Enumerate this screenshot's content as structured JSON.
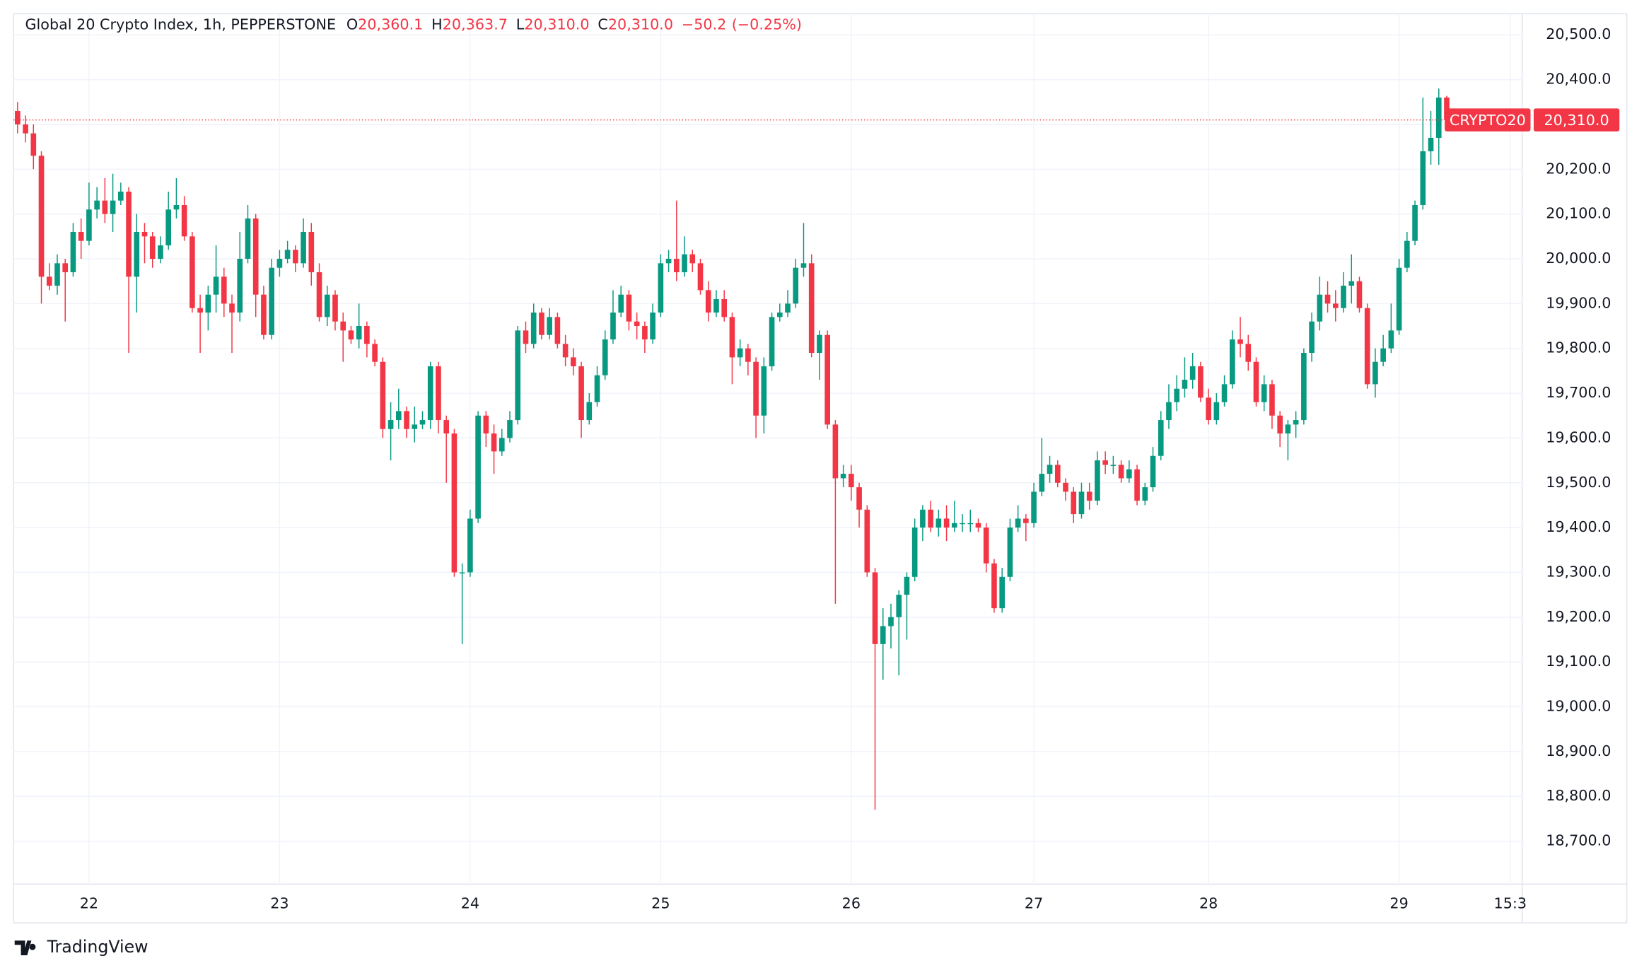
{
  "chart_data": {
    "type": "candlestick",
    "title": "Global 20 Crypto Index, 1h, PEPPERSTONE",
    "legend_values": [
      {
        "prefix": "O",
        "value": 20360.1,
        "label": "20,360.1"
      },
      {
        "prefix": "H",
        "value": 20363.7,
        "label": "20,363.7"
      },
      {
        "prefix": "L",
        "value": 20310.0,
        "label": "20,310.0"
      },
      {
        "prefix": "C",
        "value": 20310.0,
        "label": "20,310.0"
      }
    ],
    "change": {
      "value": -50.2,
      "label": "−50.2"
    },
    "change_percent": {
      "value": -0.25,
      "label": "(−0.25%)"
    },
    "price_tag": {
      "symbol": "CRYPTO20",
      "value": 20310.0,
      "label": "20,310.0"
    },
    "brand": "TradingView",
    "up_color": "#089981",
    "down_color": "#f23645",
    "grid": true,
    "ylim": [
      18604,
      20547
    ],
    "yticks": [
      {
        "value": 18700,
        "label": "18,700.0"
      },
      {
        "value": 18800,
        "label": "18,800.0"
      },
      {
        "value": 18900,
        "label": "18,900.0"
      },
      {
        "value": 19000,
        "label": "19,000.0"
      },
      {
        "value": 19100,
        "label": "19,100.0"
      },
      {
        "value": 19200,
        "label": "19,200.0"
      },
      {
        "value": 19300,
        "label": "19,300.0"
      },
      {
        "value": 19400,
        "label": "19,400.0"
      },
      {
        "value": 19500,
        "label": "19,500.0"
      },
      {
        "value": 19600,
        "label": "19,600.0"
      },
      {
        "value": 19700,
        "label": "19,700.0"
      },
      {
        "value": 19800,
        "label": "19,800.0"
      },
      {
        "value": 19900,
        "label": "19,900.0"
      },
      {
        "value": 20000,
        "label": "20,000.0"
      },
      {
        "value": 20100,
        "label": "20,100.0"
      },
      {
        "value": 20200,
        "label": "20,200.0"
      },
      {
        "value": 20300,
        "label": "20,300.0"
      },
      {
        "value": 20400,
        "label": "20,400.0"
      },
      {
        "value": 20500,
        "label": "20,500.0"
      }
    ],
    "xlim": [
      -0.5,
      189.5
    ],
    "xticks": [
      {
        "value": 9,
        "label": "22"
      },
      {
        "value": 33,
        "label": "23"
      },
      {
        "value": 57,
        "label": "24"
      },
      {
        "value": 81,
        "label": "25"
      },
      {
        "value": 105,
        "label": "26"
      },
      {
        "value": 128,
        "label": "27"
      },
      {
        "value": 150,
        "label": "28"
      },
      {
        "value": 174,
        "label": "29"
      },
      {
        "value": 188,
        "label": "15:3"
      }
    ],
    "open": [
      20330,
      20300,
      20280,
      20230,
      19960,
      19940,
      19990,
      19970,
      20060,
      20040,
      20110,
      20130,
      20100,
      20130,
      20150,
      19960,
      20060,
      20050,
      20000,
      20030,
      20110,
      20120,
      20050,
      19890,
      19880,
      19920,
      19960,
      19900,
      19880,
      20000,
      20090,
      19920,
      19830,
      19980,
      20000,
      20020,
      19990,
      20060,
      19970,
      19870,
      19920,
      19860,
      19840,
      19820,
      19850,
      19810,
      19770,
      19620,
      19640,
      19660,
      19620,
      19630,
      19640,
      19760,
      19640,
      19610,
      19300,
      19300,
      19420,
      19650,
      19610,
      19570,
      19600,
      19640,
      19840,
      19810,
      19880,
      19830,
      19870,
      19810,
      19780,
      19760,
      19640,
      19680,
      19740,
      19820,
      19880,
      19920,
      19860,
      19850,
      19820,
      19880,
      19990,
      20000,
      19970,
      20010,
      19990,
      19930,
      19880,
      19910,
      19870,
      19780,
      19800,
      19770,
      19650,
      19760,
      19870,
      19880,
      19900,
      19980,
      19990,
      19790,
      19830,
      19630,
      19510,
      19520,
      19490,
      19440,
      19300,
      19140,
      19180,
      19200,
      19250,
      19290,
      19400,
      19440,
      19400,
      19420,
      19400,
      19410,
      19410,
      19410,
      19400,
      19320,
      19220,
      19290,
      19400,
      19420,
      19410,
      19480,
      19520,
      19540,
      19500,
      19480,
      19430,
      19480,
      19460,
      19550,
      19540,
      19540,
      19510,
      19530,
      19460,
      19490,
      19560,
      19640,
      19680,
      19710,
      19730,
      19760,
      19690,
      19640,
      19680,
      19720,
      19820,
      19810,
      19770,
      19680,
      19720,
      19650,
      19610,
      19630,
      19640,
      19790,
      19860,
      19920,
      19900,
      19890,
      19940,
      19950,
      19890,
      19720,
      19770,
      19800,
      19840,
      19980,
      20040,
      20120,
      20240,
      20270,
      20360.1
    ],
    "high": [
      20350,
      20320,
      20300,
      20240,
      19990,
      20010,
      20000,
      20080,
      20090,
      20170,
      20160,
      20180,
      20190,
      20170,
      20160,
      20100,
      20080,
      20060,
      20050,
      20150,
      20180,
      20140,
      20060,
      19920,
      19940,
      20030,
      19980,
      19920,
      20060,
      20120,
      20100,
      19940,
      20000,
      20020,
      20040,
      20030,
      20090,
      20080,
      19990,
      19940,
      19930,
      19880,
      19850,
      19900,
      19860,
      19820,
      19780,
      19680,
      19710,
      19670,
      19670,
      19660,
      19770,
      19770,
      19650,
      19620,
      19320,
      19440,
      19660,
      19660,
      19630,
      19620,
      19660,
      19850,
      19860,
      19900,
      19890,
      19890,
      19880,
      19830,
      19800,
      19770,
      19700,
      19760,
      19840,
      19930,
      19940,
      19930,
      19880,
      19860,
      19900,
      20010,
      20020,
      20130,
      20050,
      20020,
      20000,
      19950,
      19930,
      19930,
      19880,
      19820,
      19810,
      19780,
      19780,
      19880,
      19900,
      19930,
      20000,
      20080,
      20010,
      19840,
      19840,
      19640,
      19540,
      19540,
      19500,
      19450,
      19310,
      19220,
      19230,
      19260,
      19300,
      19420,
      19450,
      19460,
      19440,
      19450,
      19460,
      19430,
      19440,
      19420,
      19410,
      19330,
      19310,
      19420,
      19450,
      19430,
      19500,
      19600,
      19560,
      19550,
      19510,
      19490,
      19500,
      19500,
      19570,
      19570,
      19560,
      19550,
      19550,
      19540,
      19500,
      19580,
      19660,
      19720,
      19740,
      19780,
      19790,
      19770,
      19710,
      19700,
      19740,
      19840,
      19870,
      19830,
      19780,
      19740,
      19730,
      19660,
      19640,
      19660,
      19800,
      19880,
      19960,
      19950,
      19930,
      19970,
      20010,
      19960,
      19900,
      19800,
      19830,
      19900,
      20000,
      20060,
      20130,
      20360,
      20330,
      20380,
      20363.7
    ],
    "low": [
      20280,
      20260,
      20200,
      19900,
      19930,
      19920,
      19860,
      19960,
      20000,
      20030,
      20090,
      20080,
      20060,
      20120,
      19790,
      19880,
      19990,
      19980,
      19990,
      20020,
      20090,
      20040,
      19880,
      19790,
      19840,
      19880,
      19870,
      19790,
      19860,
      19990,
      19870,
      19820,
      19820,
      19960,
      19990,
      19970,
      19980,
      19940,
      19860,
      19850,
      19840,
      19770,
      19810,
      19800,
      19780,
      19760,
      19600,
      19550,
      19620,
      19600,
      19590,
      19620,
      19620,
      19610,
      19500,
      19290,
      19140,
      19290,
      19410,
      19580,
      19520,
      19560,
      19590,
      19630,
      19790,
      19800,
      19820,
      19820,
      19800,
      19760,
      19740,
      19600,
      19630,
      19670,
      19730,
      19810,
      19870,
      19840,
      19820,
      19790,
      19810,
      19870,
      19970,
      19950,
      19960,
      19970,
      19920,
      19860,
      19870,
      19860,
      19720,
      19760,
      19740,
      19600,
      19610,
      19750,
      19860,
      19870,
      19890,
      19960,
      19780,
      19730,
      19620,
      19230,
      19490,
      19460,
      19400,
      19290,
      18770,
      19060,
      19130,
      19070,
      19150,
      19280,
      19370,
      19390,
      19380,
      19370,
      19390,
      19390,
      19390,
      19390,
      19300,
      19210,
      19210,
      19280,
      19390,
      19370,
      19400,
      19470,
      19500,
      19490,
      19460,
      19410,
      19420,
      19440,
      19450,
      19520,
      19520,
      19500,
      19500,
      19450,
      19450,
      19480,
      19550,
      19620,
      19660,
      19690,
      19710,
      19680,
      19630,
      19630,
      19670,
      19710,
      19780,
      19750,
      19670,
      19660,
      19620,
      19580,
      19550,
      19600,
      19630,
      19770,
      19840,
      19880,
      19860,
      19880,
      19900,
      19880,
      19710,
      19690,
      19760,
      19790,
      19830,
      19970,
      20030,
      20110,
      20210,
      20210,
      20310.0
    ],
    "close": [
      20300,
      20280,
      20230,
      19960,
      19940,
      19990,
      19970,
      20060,
      20040,
      20110,
      20130,
      20100,
      20130,
      20150,
      19960,
      20060,
      20050,
      20000,
      20030,
      20110,
      20120,
      20050,
      19890,
      19880,
      19920,
      19960,
      19900,
      19880,
      20000,
      20090,
      19920,
      19830,
      19980,
      20000,
      20020,
      19990,
      20060,
      19970,
      19870,
      19920,
      19860,
      19840,
      19820,
      19850,
      19810,
      19770,
      19620,
      19640,
      19660,
      19620,
      19630,
      19640,
      19760,
      19640,
      19610,
      19300,
      19300,
      19420,
      19650,
      19610,
      19570,
      19600,
      19640,
      19840,
      19810,
      19880,
      19830,
      19870,
      19810,
      19780,
      19760,
      19640,
      19680,
      19740,
      19820,
      19880,
      19920,
      19860,
      19850,
      19820,
      19880,
      19990,
      20000,
      19970,
      20010,
      19990,
      19930,
      19880,
      19910,
      19870,
      19780,
      19800,
      19770,
      19650,
      19760,
      19870,
      19880,
      19900,
      19980,
      19990,
      19790,
      19830,
      19630,
      19510,
      19520,
      19490,
      19440,
      19300,
      19140,
      19180,
      19200,
      19250,
      19290,
      19400,
      19440,
      19400,
      19420,
      19400,
      19410,
      19410,
      19410,
      19400,
      19320,
      19220,
      19290,
      19400,
      19420,
      19410,
      19480,
      19520,
      19540,
      19500,
      19480,
      19430,
      19480,
      19460,
      19550,
      19540,
      19540,
      19510,
      19530,
      19460,
      19490,
      19560,
      19640,
      19680,
      19710,
      19730,
      19760,
      19690,
      19640,
      19680,
      19720,
      19820,
      19810,
      19770,
      19680,
      19720,
      19650,
      19610,
      19630,
      19640,
      19790,
      19860,
      19920,
      19900,
      19890,
      19940,
      19950,
      19890,
      19720,
      19770,
      19800,
      19840,
      19980,
      20040,
      20120,
      20240,
      20270,
      20360,
      20310.0
    ]
  }
}
